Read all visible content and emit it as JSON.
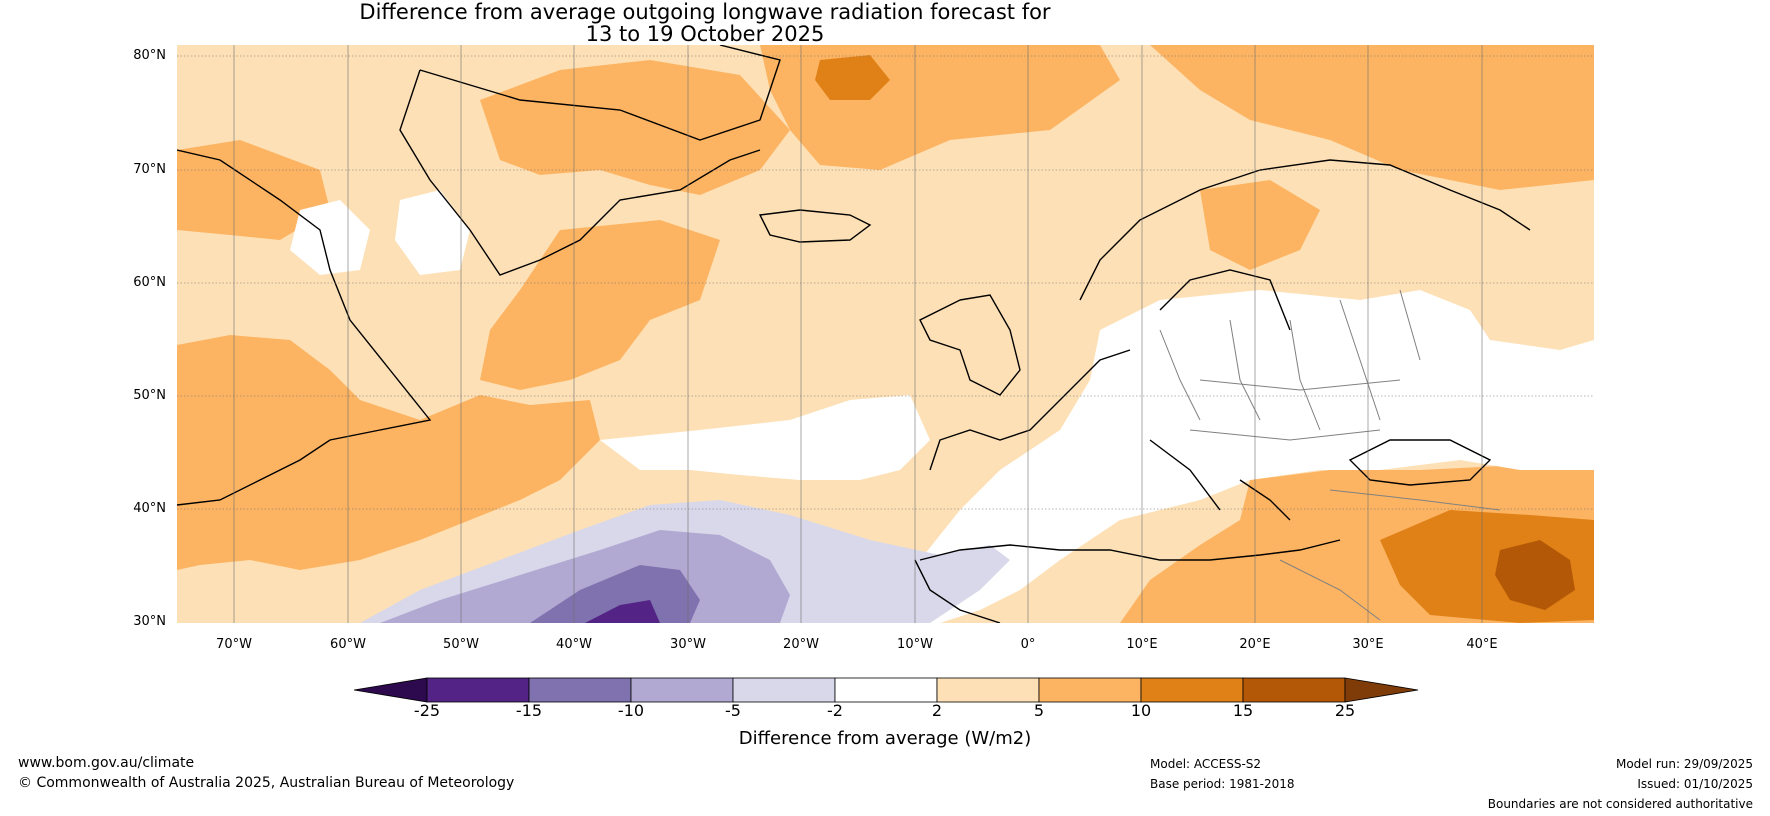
{
  "title": {
    "line1": "Difference from average outgoing longwave radiation forecast for",
    "line2": "13 to 19 October 2025"
  },
  "latitude_labels": [
    "80°N",
    "70°N",
    "60°N",
    "50°N",
    "40°N",
    "30°N"
  ],
  "longitude_labels": [
    "70°W",
    "60°W",
    "50°W",
    "40°W",
    "30°W",
    "20°W",
    "10°W",
    "0°",
    "10°E",
    "20°E",
    "30°E",
    "40°E"
  ],
  "colorbar": {
    "title": "Difference from average (W/m2)",
    "labels": [
      "-25",
      "-15",
      "-10",
      "-5",
      "-2",
      "2",
      "5",
      "10",
      "15",
      "25"
    ],
    "colors": {
      "below_min": "#2d0a4e",
      "bins": [
        "#532486",
        "#7f72ae",
        "#b1a9d2",
        "#d8d8ea",
        "#ffffff",
        "#fde0b6",
        "#fdb462",
        "#e08117",
        "#b35806"
      ],
      "above_max": "#7f3b08"
    }
  },
  "legend_fills": {
    "strong_negative": "#532486",
    "negative_10_15": "#7f72ae",
    "negative_5_10": "#b1a9d2",
    "negative_2_5": "#d8d8ea",
    "neutral": "#ffffff",
    "positive_2_5": "#fde0b6",
    "positive_5_10": "#fdb462",
    "positive_10_15": "#e08117",
    "positive_15_25": "#b35806"
  },
  "footer": {
    "website": "www.bom.gov.au/climate",
    "copyright": "© Commonwealth of Australia 2025, Australian Bureau of Meteorology",
    "model": "Model: ACCESS-S2",
    "base_period": "Base period: 1981-2018",
    "model_run": "Model run: 29/09/2025",
    "issued": "Issued: 01/10/2025",
    "boundaries": "Boundaries are not considered authoritative"
  }
}
